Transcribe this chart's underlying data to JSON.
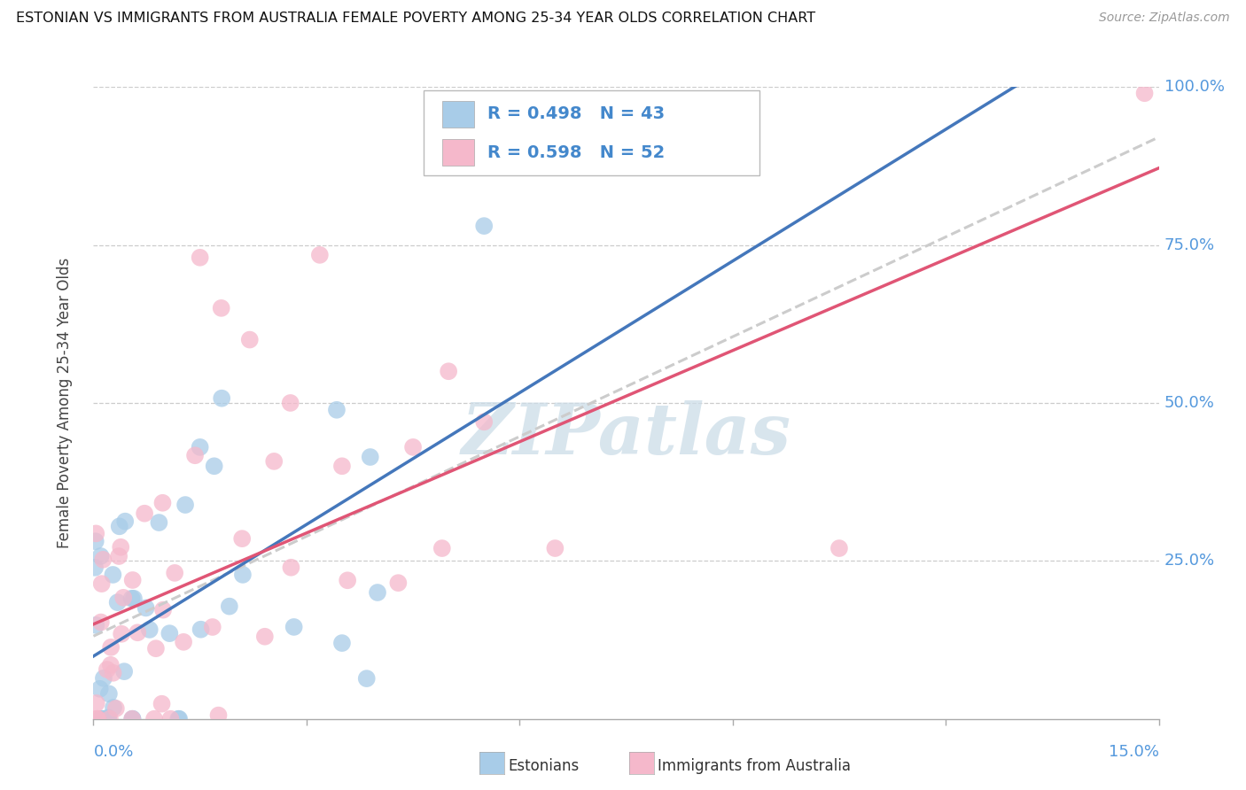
{
  "title": "ESTONIAN VS IMMIGRANTS FROM AUSTRALIA FEMALE POVERTY AMONG 25-34 YEAR OLDS CORRELATION CHART",
  "source": "Source: ZipAtlas.com",
  "ylabel": "Female Poverty Among 25-34 Year Olds",
  "xmin": 0.0,
  "xmax": 15.0,
  "ymin": 0.0,
  "ymax": 100.0,
  "background_color": "#ffffff",
  "grid_color": "#cccccc",
  "color_estonian": "#a8cce8",
  "color_immigrant": "#f5b8cb",
  "trend_color_estonian": "#4477bb",
  "trend_color_immigrant": "#e05575",
  "trend_color_dashed": "#cccccc",
  "right_axis_color": "#5599dd",
  "watermark_color": "#ccdde8",
  "legend_R_text": "#333333",
  "legend_val_color": "#4488cc",
  "N_estonian": 43,
  "N_immigrant": 52,
  "R_estonian": 0.498,
  "R_immigrant": 0.598,
  "legend_R1": "R = 0.498",
  "legend_N1": "N = 43",
  "legend_R2": "R = 0.598",
  "legend_N2": "N = 52"
}
